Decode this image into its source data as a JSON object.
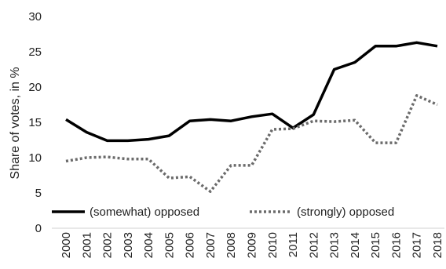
{
  "chart_data": {
    "type": "line",
    "title": "",
    "xlabel": "",
    "ylabel": "Share of votes, in %",
    "ylim": [
      0,
      30
    ],
    "yticks": [
      0,
      5,
      10,
      15,
      20,
      25,
      30
    ],
    "grid": false,
    "legend_position": "bottom-inside",
    "categories": [
      "2000",
      "2001",
      "2002",
      "2003",
      "2004",
      "2005",
      "2006",
      "2007",
      "2008",
      "2009",
      "2010",
      "2011",
      "2012",
      "2013",
      "2014",
      "2015",
      "2016",
      "2017",
      "2018"
    ],
    "series": [
      {
        "name": "(somewhat) opposed",
        "style": "solid",
        "color": "#000000",
        "values": [
          15.4,
          13.6,
          12.4,
          12.4,
          12.6,
          13.1,
          15.2,
          15.4,
          15.2,
          15.8,
          16.2,
          14.2,
          16.1,
          22.5,
          23.5,
          25.8,
          25.8,
          26.3,
          25.8
        ]
      },
      {
        "name": "(strongly) opposed",
        "style": "dotted",
        "color": "#6b6b6b",
        "values": [
          9.5,
          10.0,
          10.1,
          9.8,
          9.8,
          7.1,
          7.3,
          5.2,
          8.9,
          8.9,
          14.0,
          14.1,
          15.2,
          15.1,
          15.3,
          12.1,
          12.1,
          18.8,
          17.5
        ]
      }
    ]
  }
}
